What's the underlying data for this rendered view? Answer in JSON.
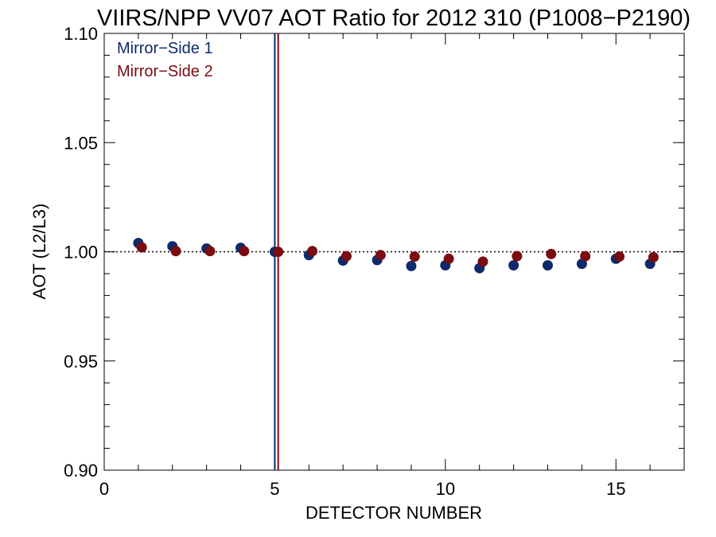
{
  "chart_data": {
    "type": "scatter",
    "title": "VIIRS/NPP VV07 AOT Ratio for 2012 310 (P1008−P2190)",
    "xlabel": "DETECTOR NUMBER",
    "ylabel": "AOT (L2/L3)",
    "xlim": [
      0,
      17
    ],
    "ylim": [
      0.9,
      1.1
    ],
    "xticks": [
      0,
      5,
      10,
      15
    ],
    "xtick_labels": [
      "0",
      "5",
      "10",
      "15"
    ],
    "yticks": [
      0.9,
      0.95,
      1.0,
      1.05,
      1.1
    ],
    "ytick_labels": [
      "0.90",
      "0.95",
      "1.00",
      "1.05",
      "1.10"
    ],
    "reference_line": {
      "y": 1.0,
      "style": "dotted"
    },
    "vertical_lines": [
      {
        "x": 5.0,
        "color": "#0d2a6b"
      },
      {
        "x": 5.1,
        "color": "#7a0c12"
      }
    ],
    "legend_position": "top-left",
    "series": [
      {
        "name": "Mirror−Side 1",
        "color": "#0d2a6b",
        "x": [
          1,
          2,
          3,
          4,
          5,
          6,
          7,
          8,
          9,
          10,
          11,
          12,
          13,
          14,
          15,
          16
        ],
        "values": [
          1.004,
          1.0025,
          1.0015,
          1.0018,
          1.0,
          0.9985,
          0.996,
          0.9962,
          0.9935,
          0.9938,
          0.9925,
          0.9938,
          0.9938,
          0.9945,
          0.9968,
          0.9945
        ]
      },
      {
        "name": "Mirror−Side 2",
        "color": "#7a0c12",
        "x": [
          1.1,
          2.1,
          3.1,
          4.1,
          5.1,
          6.1,
          7.1,
          8.1,
          9.1,
          10.1,
          11.1,
          12.1,
          13.1,
          14.1,
          15.1,
          16.1
        ],
        "values": [
          1.002,
          1.0003,
          1.0003,
          1.0003,
          1.0,
          1.0003,
          0.998,
          0.9985,
          0.9978,
          0.9968,
          0.9955,
          0.998,
          0.999,
          0.998,
          0.9978,
          0.9975
        ]
      }
    ]
  }
}
